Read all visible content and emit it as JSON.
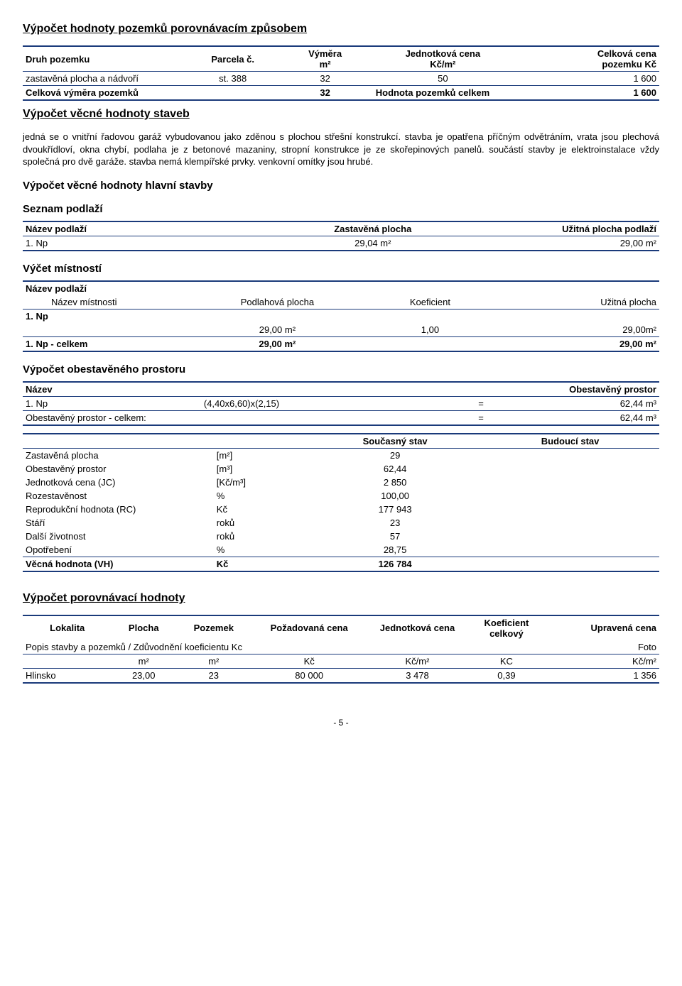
{
  "sec1": {
    "title": "Výpočet hodnoty pozemků porovnávacím způsobem",
    "headers": {
      "h1": "Druh pozemku",
      "h2": "Parcela č.",
      "h3": "Výměra",
      "h3b": "m²",
      "h4": "Jednotková cena",
      "h4b": "Kč/m²",
      "h5": "Celková cena",
      "h5b": "pozemku Kč"
    },
    "row1": {
      "druh": "zastavěná plocha a nádvoří",
      "parcela": "st. 388",
      "vymera": "32",
      "jc": "50",
      "cc": "1 600"
    },
    "total": {
      "l1": "Celková výměra pozemků",
      "v1": "32",
      "l2": "Hodnota pozemků celkem",
      "v2": "1 600"
    }
  },
  "sec2": {
    "title": "Výpočet věcné hodnoty staveb",
    "para": "jedná se o vnitřní řadovou garáž vybudovanou jako zděnou s plochou střešní konstrukcí. stavba je opatřena příčným odvětráním, vrata jsou plechová dvoukřídloví, okna chybí, podlaha je z betonové mazaniny, stropní konstrukce je ze skořepinových panelů. součástí stavby je elektroinstalace vždy společná pro dvě garáže. stavba nemá klempířské prvky. venkovní omítky jsou hrubé."
  },
  "sec3": {
    "title": "Výpočet věcné hodnoty hlavní stavby",
    "seznam_h": "Seznam podlaží",
    "podlazi": {
      "h1": "Název podlaží",
      "h2": "Zastavěná plocha",
      "h3": "Užitná plocha podlaží",
      "r1a": "1. Np",
      "r1b": "29,04 m²",
      "r1c": "29,00 m²"
    }
  },
  "sec4": {
    "title": "Výčet místností",
    "h1": "Název podlaží",
    "h2a": "Název místnosti",
    "h2b": "Podlahová plocha",
    "h2c": "Koeficient",
    "h2d": "Užitná plocha",
    "r1": "1. Np",
    "r2b": "29,00 m²",
    "r2c": "1,00",
    "r2d": "29,00m²",
    "r3a": "1. Np - celkem",
    "r3b": "29,00 m²",
    "r3d": "29,00 m²"
  },
  "sec5": {
    "title": "Výpočet obestavěného prostoru",
    "h1": "Název",
    "h2": "Obestavěný prostor",
    "r1a": "1. Np",
    "r1b": "(4,40x6,60)x(2,15)",
    "r1c": "=",
    "r1d": "62,44 m³",
    "r2a": "Obestavěný prostor - celkem:",
    "r2c": "=",
    "r2d": "62,44 m³"
  },
  "sec6": {
    "h_cur": "Současný stav",
    "h_fut": "Budoucí stav",
    "rows": [
      {
        "l": "Zastavěná plocha",
        "u": "[m²]",
        "v": "29"
      },
      {
        "l": "Obestavěný prostor",
        "u": "[m³]",
        "v": "62,44"
      },
      {
        "l": "Jednotková cena (JC)",
        "u": "[Kč/m³]",
        "v": "2 850"
      },
      {
        "l": "Rozestavěnost",
        "u": "%",
        "v": "100,00"
      },
      {
        "l": "Reprodukční hodnota (RC)",
        "u": "Kč",
        "v": "177 943"
      },
      {
        "l": "Stáří",
        "u": "roků",
        "v": "23"
      },
      {
        "l": "Další životnost",
        "u": "roků",
        "v": "57"
      },
      {
        "l": "Opotřebení",
        "u": "%",
        "v": "28,75"
      }
    ],
    "last": {
      "l": "Věcná hodnota (VH)",
      "u": "Kč",
      "v": "126 784"
    }
  },
  "sec7": {
    "title": "Výpočet porovnávací hodnoty",
    "h": {
      "c1": "Lokalita",
      "c2": "Plocha",
      "c3": "Pozemek",
      "c4": "Požadovaná cena",
      "c5": "Jednotková cena",
      "c6": "Koeficient",
      "c6b": "celkový",
      "c7": "Upravená cena"
    },
    "sub": {
      "l": "Popis stavby a pozemků / Zdůvodnění koeficientu Kc",
      "r": "Foto",
      "u2": "m²",
      "u3": "m²",
      "u4": "Kč",
      "u5": "Kč/m²",
      "u6": "KC",
      "u7": "Kč/m²"
    },
    "row": {
      "c1": "Hlinsko",
      "c2": "23,00",
      "c3": "23",
      "c4": "80 000",
      "c5": "3 478",
      "c6": "0,39",
      "c7": "1 356"
    }
  },
  "footer": "- 5 -"
}
